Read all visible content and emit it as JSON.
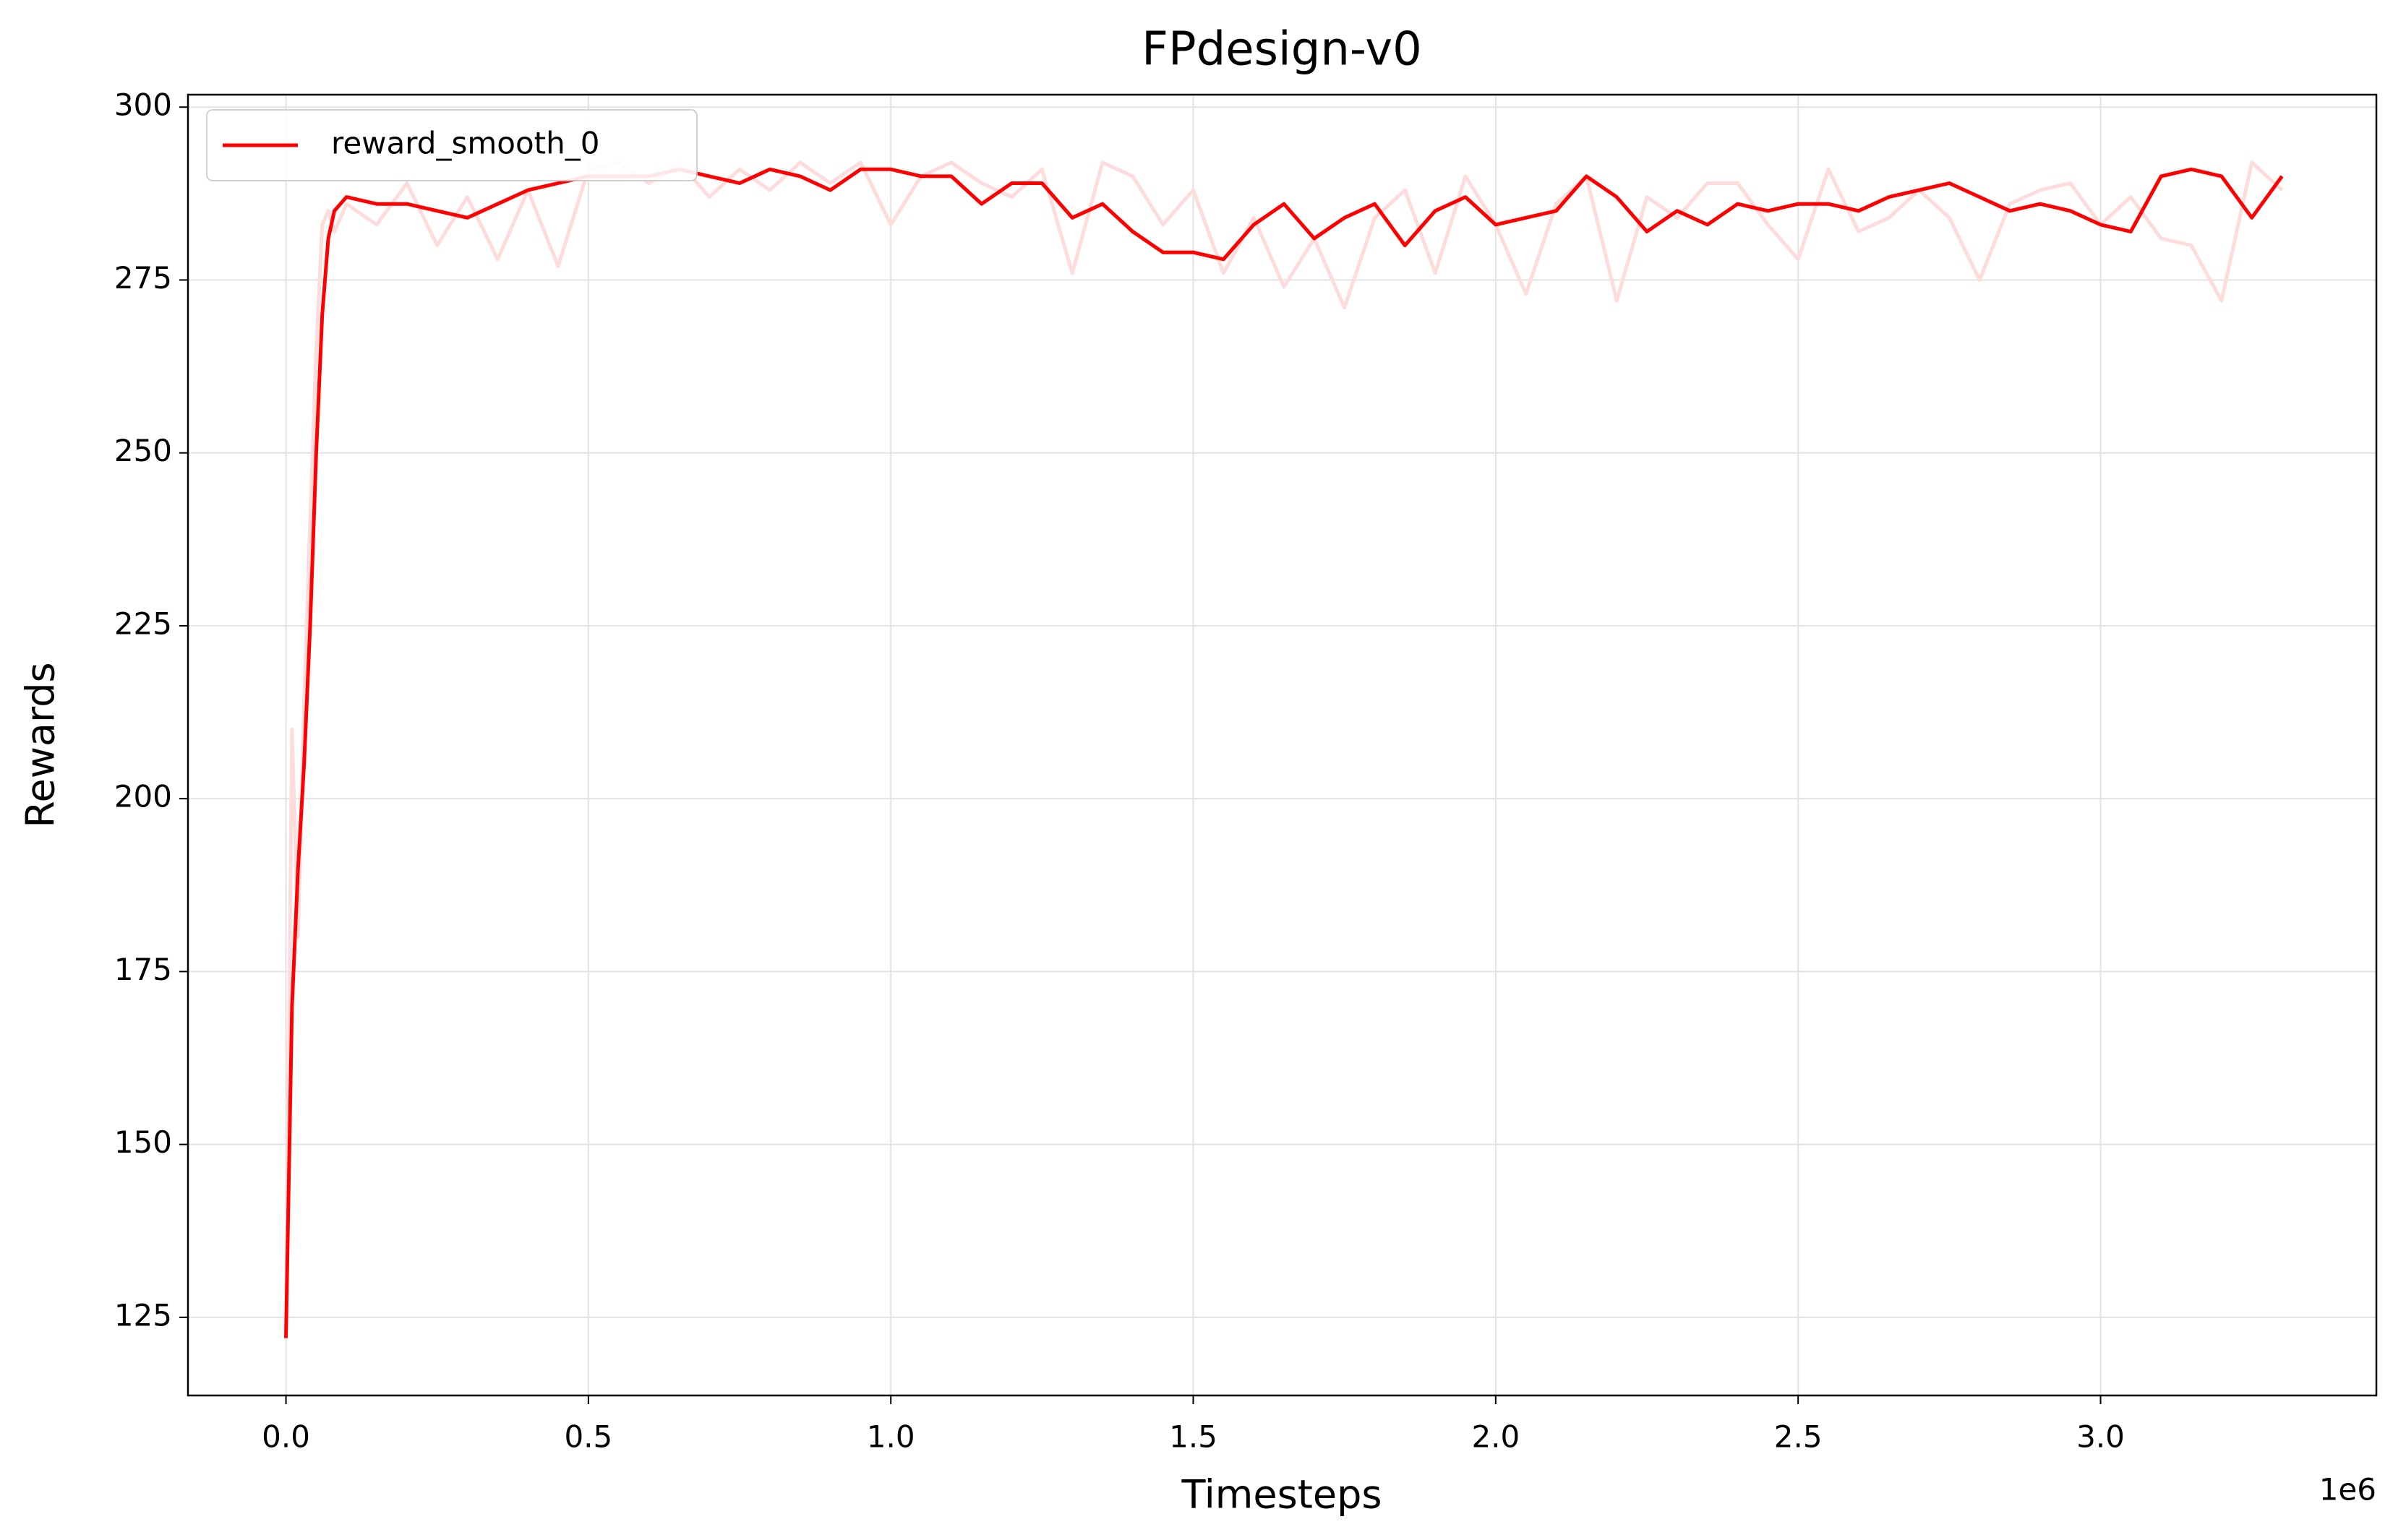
{
  "chart_data": {
    "type": "line",
    "title": "FPdesign-v0",
    "x_label": "Timesteps",
    "y_label": "Rewards",
    "x_offset_label": "1e6",
    "x": [
      0,
      10000,
      20000,
      30000,
      40000,
      50000,
      60000,
      70000,
      80000,
      100000,
      150000,
      200000,
      250000,
      300000,
      350000,
      400000,
      450000,
      500000,
      550000,
      600000,
      650000,
      700000,
      750000,
      800000,
      850000,
      900000,
      950000,
      1000000,
      1050000,
      1100000,
      1150000,
      1200000,
      1250000,
      1300000,
      1350000,
      1400000,
      1450000,
      1500000,
      1550000,
      1600000,
      1650000,
      1700000,
      1750000,
      1800000,
      1850000,
      1900000,
      1950000,
      2000000,
      2050000,
      2100000,
      2150000,
      2200000,
      2250000,
      2300000,
      2350000,
      2400000,
      2450000,
      2500000,
      2550000,
      2600000,
      2650000,
      2700000,
      2750000,
      2800000,
      2850000,
      2900000,
      2950000,
      3000000,
      3050000,
      3100000,
      3150000,
      3200000,
      3250000,
      3300000
    ],
    "series": [
      {
        "color": "#ffdcdc",
        "values": [
          122,
          210,
          180,
          214,
          240,
          265,
          283,
          285,
          282,
          286,
          283,
          289,
          280,
          287,
          278,
          288,
          277,
          291,
          292,
          289,
          292,
          287,
          291,
          288,
          292,
          289,
          292,
          283,
          290,
          292,
          289,
          287,
          291,
          276,
          292,
          290,
          283,
          288,
          276,
          284,
          274,
          281,
          271,
          284,
          288,
          276,
          290,
          283,
          273,
          286,
          290,
          272,
          287,
          284,
          289,
          289,
          283,
          278,
          291,
          282,
          284,
          288,
          284,
          275,
          286,
          288,
          289,
          283,
          287,
          281,
          280,
          272,
          292,
          288
        ]
      },
      {
        "name": "reward_smooth_0",
        "color": "#ff0000",
        "values": [
          122,
          170,
          190,
          205,
          225,
          250,
          270,
          281,
          285,
          287,
          286,
          286,
          285,
          284,
          286,
          288,
          289,
          290,
          290,
          290,
          291,
          290,
          289,
          291,
          290,
          288,
          291,
          291,
          290,
          290,
          286,
          289,
          289,
          284,
          286,
          282,
          279,
          279,
          278,
          283,
          286,
          281,
          284,
          286,
          280,
          285,
          287,
          283,
          284,
          285,
          290,
          287,
          282,
          285,
          283,
          286,
          285,
          286,
          286,
          285,
          287,
          288,
          289,
          287,
          285,
          286,
          285,
          283,
          282,
          290,
          291,
          290,
          284,
          290
        ]
      }
    ],
    "xlim": [
      -162000,
      3456000
    ],
    "xticks": [
      {
        "value": 0,
        "label": "0.0"
      },
      {
        "value": 500000,
        "label": "0.5"
      },
      {
        "value": 1000000,
        "label": "1.0"
      },
      {
        "value": 1500000,
        "label": "1.5"
      },
      {
        "value": 2000000,
        "label": "2.0"
      },
      {
        "value": 2500000,
        "label": "2.5"
      },
      {
        "value": 3000000,
        "label": "3.0"
      }
    ],
    "ylim": [
      113.7,
      301.8
    ],
    "yticks": [
      125,
      150,
      175,
      200,
      225,
      250,
      275,
      300
    ],
    "grid": true,
    "legend": "upper left"
  }
}
